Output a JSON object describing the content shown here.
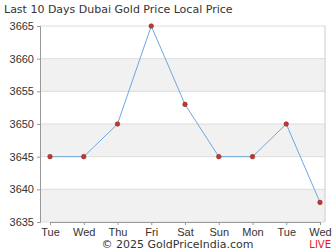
{
  "chart_data": {
    "type": "line",
    "title": "Last 10 Days Dubai Gold Price Local Price",
    "categories": [
      "Tue",
      "Wed",
      "Thu",
      "Fri",
      "Sat",
      "Sun",
      "Mon",
      "Tue",
      "Wed"
    ],
    "values": [
      3645,
      3645,
      3650,
      3665,
      3653,
      3645,
      3645,
      3650,
      3638
    ],
    "color": "#6fa8dc",
    "marker": "circle",
    "ylim": [
      3635,
      3665
    ],
    "yticks": [
      3635,
      3640,
      3645,
      3650,
      3655,
      3660,
      3665
    ],
    "grid": true,
    "annotations": [
      "© 2025 GoldPriceIndia.com",
      "LIVE"
    ]
  }
}
